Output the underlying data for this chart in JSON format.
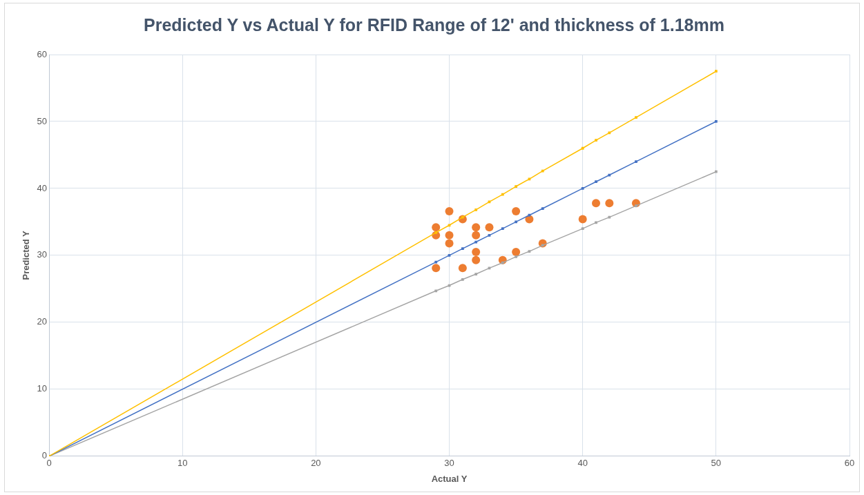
{
  "chart_data": {
    "type": "scatter",
    "title": "Predicted Y vs Actual Y for RFID Range of 12' and thickness of 1.18mm",
    "xlabel": "Actual Y",
    "ylabel": "Predicted Y",
    "xlim": [
      0,
      60
    ],
    "xticks": [
      0,
      10,
      20,
      30,
      40,
      50,
      60
    ],
    "ylim": [
      0,
      60
    ],
    "yticks": [
      0,
      10,
      20,
      30,
      40,
      50,
      60
    ],
    "grid": true,
    "legend": false,
    "series": [
      {
        "type": "line",
        "color": "#ffc000",
        "marker": "square",
        "x": [
          0,
          29,
          30,
          31,
          32,
          33,
          34,
          35,
          36,
          37,
          40,
          41,
          42,
          44,
          50
        ],
        "values": [
          0,
          33.4,
          34.5,
          35.7,
          36.8,
          38,
          39.1,
          40.3,
          41.4,
          42.6,
          46,
          47.2,
          48.3,
          50.6,
          57.5
        ]
      },
      {
        "type": "line",
        "color": "#4472c4",
        "marker": "square",
        "x": [
          0,
          29,
          30,
          31,
          32,
          33,
          34,
          35,
          36,
          37,
          40,
          41,
          42,
          44,
          50
        ],
        "values": [
          0,
          29,
          30,
          31,
          32,
          33,
          34,
          35,
          36,
          37,
          40,
          41,
          42,
          44,
          50
        ]
      },
      {
        "type": "line",
        "color": "#a5a5a5",
        "marker": "square",
        "x": [
          0,
          29,
          30,
          31,
          32,
          33,
          34,
          35,
          36,
          37,
          40,
          41,
          42,
          44,
          50
        ],
        "values": [
          0,
          24.7,
          25.5,
          26.4,
          27.2,
          28.1,
          28.9,
          29.8,
          30.6,
          31.5,
          34,
          34.9,
          35.7,
          37.4,
          42.5
        ]
      },
      {
        "color": "#ed7d31",
        "marker": "circle",
        "x": [
          29,
          29,
          29,
          30,
          30,
          30,
          31,
          31,
          32,
          32,
          32,
          32,
          33,
          34,
          35,
          35,
          36,
          37,
          40,
          41,
          42,
          44
        ],
        "values": [
          28.1,
          33,
          34.2,
          36.6,
          33,
          31.8,
          35.4,
          28.1,
          34.2,
          33,
          30.5,
          29.3,
          34.2,
          29.3,
          36.6,
          30.5,
          35.4,
          31.8,
          35.4,
          37.8,
          37.8,
          37.8
        ]
      }
    ]
  }
}
